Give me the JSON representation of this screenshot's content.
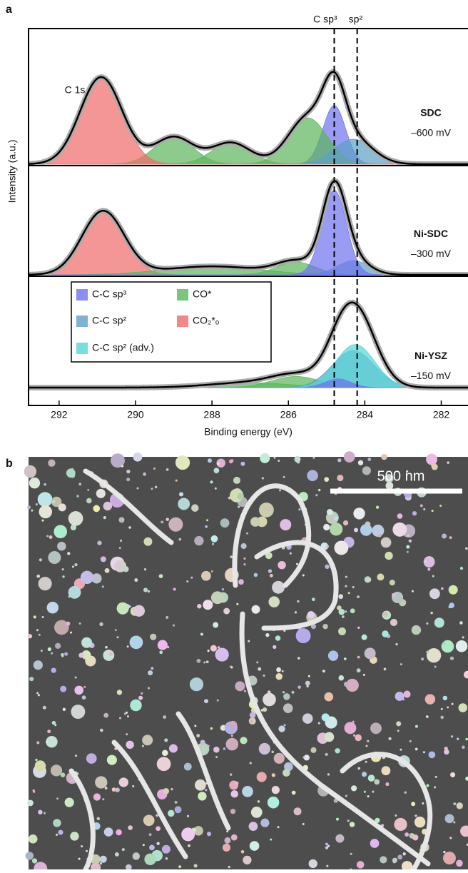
{
  "chart_data": {
    "type": "xps",
    "panel_letter": "a",
    "xlabel": "Binding energy (eV)",
    "ylabel": "Intensity (a.u.)",
    "xlim": [
      292.8,
      281.3
    ],
    "xticks": [
      292,
      290,
      288,
      286,
      284,
      282
    ],
    "peak_annotation": "C 1s",
    "reference_lines": [
      {
        "value": 284.8,
        "label": "C sp³"
      },
      {
        "value": 284.2,
        "label": "sp²"
      }
    ],
    "panels": [
      {
        "label": "SDC",
        "potential": "–600 mV",
        "ylim": [
          0,
          190
        ],
        "series": [
          {
            "name": "C-C sp³",
            "color": "#6f72ee",
            "center": 284.8,
            "height": 82,
            "fwhm": 0.7
          },
          {
            "name": "CO*",
            "color": "#5db55d",
            "center": 289.0,
            "height": 38,
            "fwhm": 1.2
          },
          {
            "name": "CO*",
            "color": "#5db55d",
            "center": 287.5,
            "height": 30,
            "fwhm": 1.2
          },
          {
            "name": "CO*",
            "color": "#5db55d",
            "center": 285.5,
            "height": 65,
            "fwhm": 1.2
          },
          {
            "name": "C-C sp²",
            "color": "#5d9fc4",
            "center": 284.3,
            "height": 35,
            "fwhm": 1.2
          },
          {
            "name": "CO₂*ₒ",
            "color": "#f06a6a",
            "center": 290.9,
            "height": 122,
            "fwhm": 1.3
          }
        ]
      },
      {
        "label": "Ni-SDC",
        "potential": "–300 mV",
        "ylim": [
          0,
          155
        ],
        "series": [
          {
            "name": "CO₂*ₒ",
            "color": "#f06a6a",
            "center": 290.85,
            "height": 90,
            "fwhm": 1.3
          },
          {
            "name": "CO*",
            "color": "#5db55d",
            "center": 288.0,
            "height": 12,
            "fwhm": 3.0
          },
          {
            "name": "CO*",
            "color": "#5db55d",
            "center": 285.8,
            "height": 18,
            "fwhm": 1.2
          },
          {
            "name": "C-C sp²",
            "color": "#5d9fc4",
            "center": 284.3,
            "height": 20,
            "fwhm": 1.0
          },
          {
            "name": "C-C sp³",
            "color": "#6f72ee",
            "center": 284.8,
            "height": 120,
            "fwhm": 0.75
          }
        ]
      },
      {
        "label": "Ni-YSZ",
        "potential": "–150 mV",
        "ylim": [
          0,
          181
        ],
        "series": [
          {
            "name": "CO*",
            "color": "#5db55d",
            "center": 287.0,
            "height": 8,
            "fwhm": 2.5
          },
          {
            "name": "CO*",
            "color": "#5db55d",
            "center": 285.8,
            "height": 18,
            "fwhm": 1.5
          },
          {
            "name": "C-C sp²",
            "color": "#5d9fc4",
            "center": 284.3,
            "height": 60,
            "fwhm": 1.3
          },
          {
            "name": "C-C sp² (adv.)",
            "color": "#56d6d6",
            "center": 284.25,
            "height": 70,
            "fwhm": 1.2
          },
          {
            "name": "C-C sp³",
            "color": "#6f72ee",
            "center": 284.7,
            "height": 14,
            "fwhm": 0.8
          }
        ]
      }
    ]
  },
  "image_panel": {
    "panel_letter": "b",
    "scale_bar": "500 nm"
  }
}
